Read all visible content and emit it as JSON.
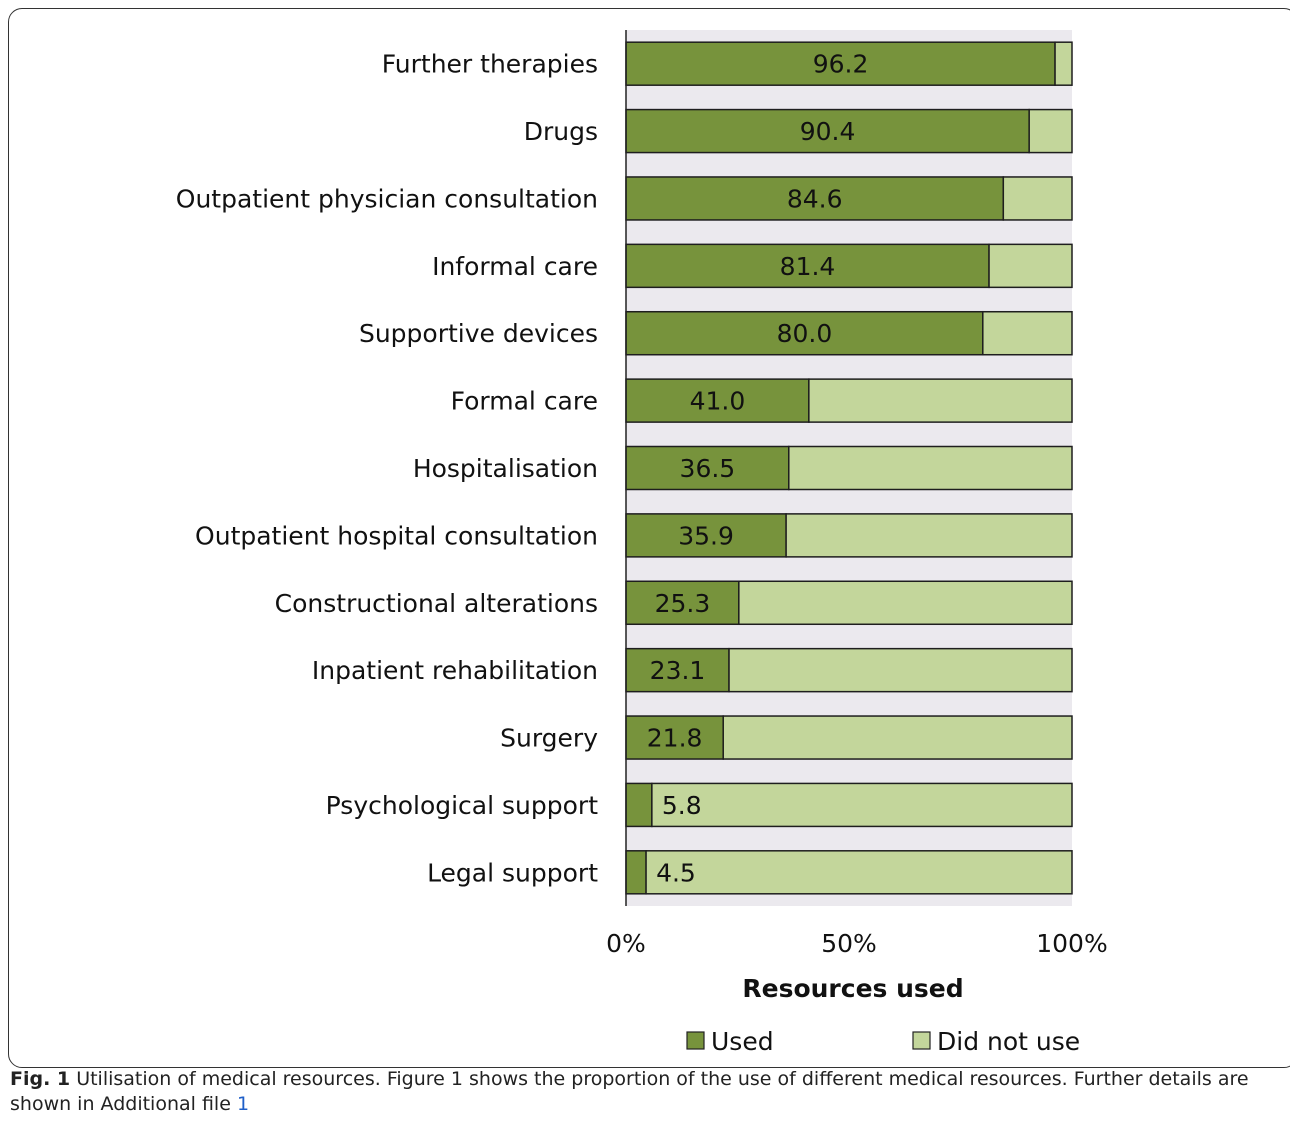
{
  "chart_data": {
    "type": "bar",
    "orientation": "horizontal",
    "stacked": "100%",
    "categories": [
      "Further therapies",
      "Drugs",
      "Outpatient physician consultation",
      "Informal care",
      "Supportive devices",
      "Formal care",
      "Hospitalisation",
      "Outpatient hospital consultation",
      "Constructional alterations",
      "Inpatient rehabilitation",
      "Surgery",
      "Psychological support",
      "Legal support"
    ],
    "series": [
      {
        "name": "Used",
        "values": [
          96.2,
          90.4,
          84.6,
          81.4,
          80.0,
          41.0,
          36.5,
          35.9,
          25.3,
          23.1,
          21.8,
          5.8,
          4.5
        ],
        "color": "#77933c"
      },
      {
        "name": "Did not use",
        "values": [
          3.8,
          9.6,
          15.4,
          18.6,
          20.0,
          59.0,
          63.5,
          64.1,
          74.7,
          76.9,
          78.2,
          94.2,
          95.5
        ],
        "color": "#c3d69b"
      }
    ],
    "data_labels": [
      "96.2",
      "90.4",
      "84.6",
      "81.4",
      "80.0",
      "41.0",
      "36.5",
      "35.9",
      "25.3",
      "23.1",
      "21.8",
      "5.8",
      "4.5"
    ],
    "xlim": [
      0,
      100
    ],
    "xticks": [
      "0%",
      "50%",
      "100%"
    ],
    "xlabel": "Resources used",
    "legend": {
      "placement": "bottom",
      "entries": [
        "Used",
        "Did not use"
      ]
    },
    "plot_background": "#ebe9ee"
  },
  "caption": {
    "fig_label": "Fig. 1",
    "text": " Utilisation of medical resources. Figure 1 shows the proportion of the use of different medical resources. Further details are shown in Additional file ",
    "link_text": "1"
  }
}
